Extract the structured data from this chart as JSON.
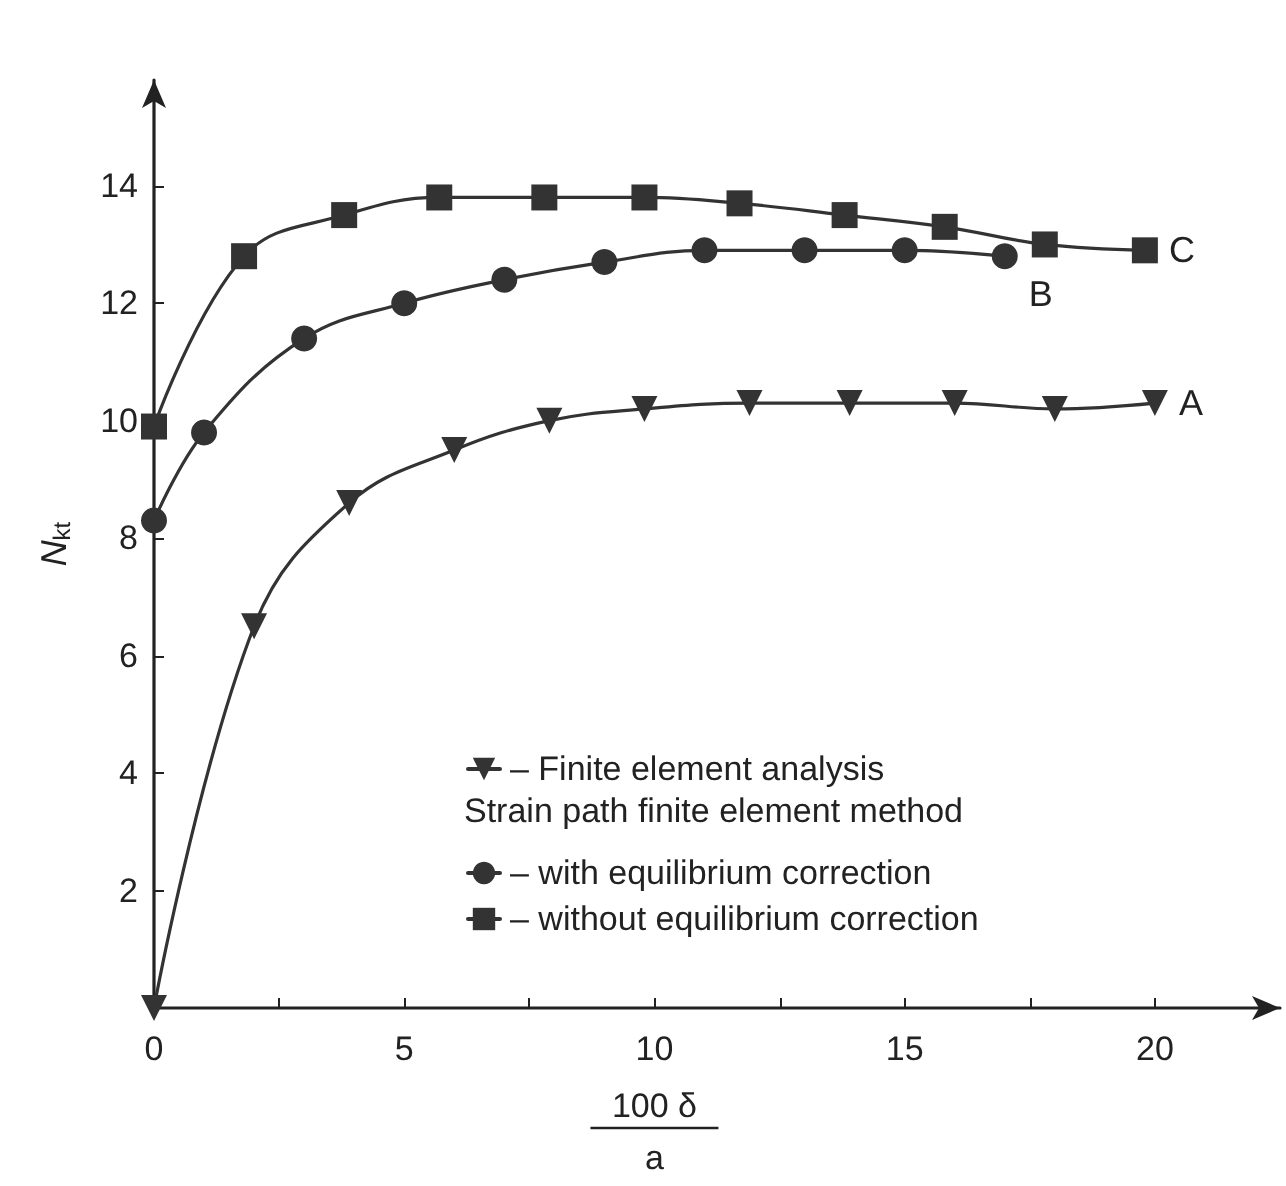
{
  "chart_data": {
    "type": "line",
    "xlabel": "100 δ\na",
    "ylabel": "N$_{kt}$",
    "xlim": [
      0,
      22.5
    ],
    "ylim": [
      0,
      15.8
    ],
    "xticks": [
      0,
      {
        "value": 2.5,
        "label": null
      },
      5,
      {
        "value": 7.5,
        "label": null
      },
      10,
      {
        "value": 12.5,
        "label": null
      },
      15,
      {
        "value": 17.5,
        "label": null
      },
      20
    ],
    "yticks": [
      2,
      4,
      6,
      8,
      10,
      12,
      14
    ],
    "grid": false,
    "legend": "bottom right",
    "line_style": "solid",
    "series": [
      {
        "name": "– Finite element analysis",
        "color": "#333333",
        "marker": "triangle",
        "x": [
          0,
          2,
          3.9,
          6,
          7.9,
          9.8,
          11.9,
          13.9,
          16,
          18,
          20
        ],
        "values": [
          0,
          6.5,
          8.6,
          9.5,
          10,
          10.2,
          10.3,
          10.3,
          10.3,
          10.2,
          10.3
        ]
      },
      {
        "name": "– with equilibrium correction",
        "color": "#333333",
        "marker": "circle",
        "x": [
          0,
          1,
          3,
          5,
          7,
          9,
          11,
          13,
          15,
          17
        ],
        "values": [
          8.3,
          9.8,
          11.4,
          12,
          12.4,
          12.7,
          12.9,
          12.9,
          12.9,
          12.8
        ]
      },
      {
        "name": "– without equilibrium correction",
        "color": "#333333",
        "marker": "square",
        "x": [
          0,
          1.8,
          3.8,
          5.7,
          7.8,
          9.8,
          11.7,
          13.8,
          15.8,
          17.8,
          19.8
        ],
        "values": [
          9.9,
          12.8,
          13.5,
          13.8,
          13.8,
          13.8,
          13.7,
          13.5,
          13.3,
          13,
          12.9
        ]
      }
    ],
    "annotations": [
      "Strain path finite element method",
      "A",
      "B",
      "C"
    ]
  }
}
